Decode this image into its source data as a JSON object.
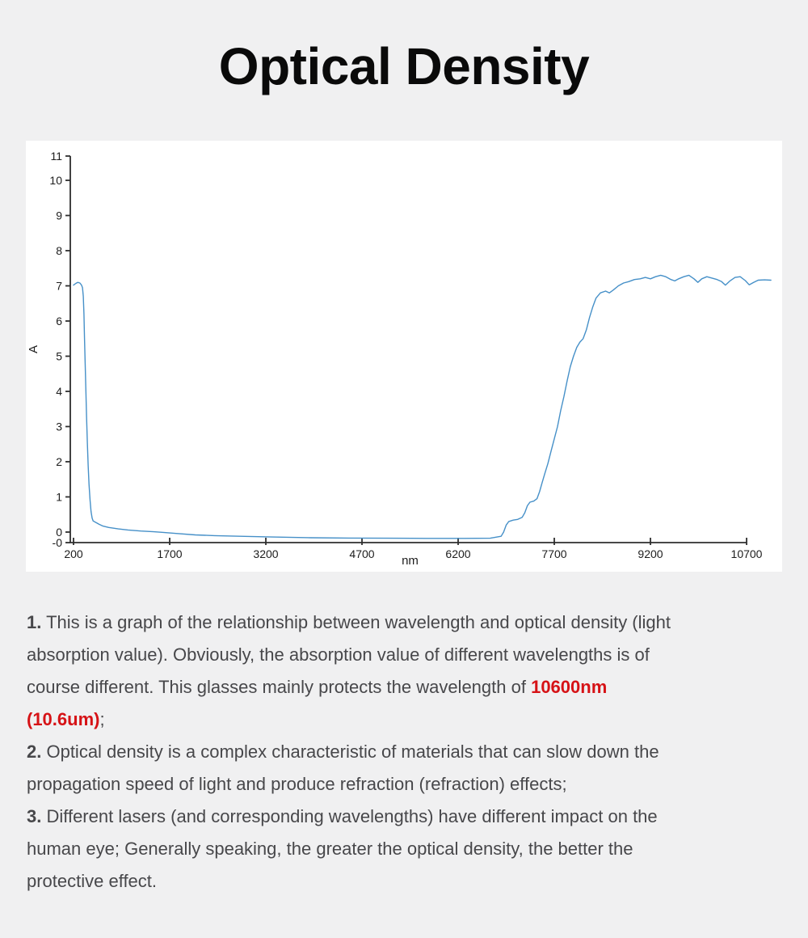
{
  "page": {
    "title": "Optical Density"
  },
  "colors": {
    "background": "#f0f0f1",
    "card": "#ffffff",
    "title": "#0a0a0a",
    "text": "#47474a",
    "accent-red": "#d61216",
    "curve": "#4690c8",
    "axis": "#2e2e2e",
    "tick-text": "#1d1d1d"
  },
  "chart_data": {
    "type": "line",
    "title": "",
    "xlabel": "nm",
    "ylabel": "A",
    "xlim": [
      200,
      11080
    ],
    "ylim": [
      -0.3,
      11
    ],
    "grid": false,
    "legend": null,
    "line_color": "#4690c8",
    "x_ticks": [
      200,
      1700,
      3200,
      4700,
      6200,
      7700,
      9200,
      10700
    ],
    "y_ticks": [
      {
        "label": "11",
        "v": 10.69
      },
      {
        "label": "10",
        "v": 10
      },
      {
        "label": "9",
        "v": 9
      },
      {
        "label": "8",
        "v": 8
      },
      {
        "label": "7",
        "v": 7
      },
      {
        "label": "6",
        "v": 6
      },
      {
        "label": "5",
        "v": 5
      },
      {
        "label": "4",
        "v": 4
      },
      {
        "label": "3",
        "v": 3
      },
      {
        "label": "2",
        "v": 2
      },
      {
        "label": "1",
        "v": 1
      },
      {
        "label": "0",
        "v": 0
      },
      {
        "label": "-0",
        "v": -0.3
      }
    ],
    "series": [
      {
        "name": "optical-density",
        "points": [
          [
            200,
            7.02
          ],
          [
            235,
            7.07
          ],
          [
            265,
            7.1
          ],
          [
            300,
            7.08
          ],
          [
            325,
            7.02
          ],
          [
            340,
            6.95
          ],
          [
            352,
            6.7
          ],
          [
            362,
            6.2
          ],
          [
            372,
            5.5
          ],
          [
            382,
            4.8
          ],
          [
            392,
            4.1
          ],
          [
            403,
            3.3
          ],
          [
            415,
            2.55
          ],
          [
            428,
            1.9
          ],
          [
            442,
            1.35
          ],
          [
            458,
            0.9
          ],
          [
            474,
            0.58
          ],
          [
            490,
            0.4
          ],
          [
            505,
            0.32
          ],
          [
            540,
            0.28
          ],
          [
            600,
            0.22
          ],
          [
            660,
            0.17
          ],
          [
            750,
            0.13
          ],
          [
            900,
            0.09
          ],
          [
            1050,
            0.06
          ],
          [
            1250,
            0.03
          ],
          [
            1450,
            0.01
          ],
          [
            1600,
            -0.01
          ],
          [
            1800,
            -0.04
          ],
          [
            2100,
            -0.08
          ],
          [
            2400,
            -0.1
          ],
          [
            2800,
            -0.12
          ],
          [
            3300,
            -0.14
          ],
          [
            3900,
            -0.16
          ],
          [
            4500,
            -0.17
          ],
          [
            5100,
            -0.175
          ],
          [
            5700,
            -0.18
          ],
          [
            6300,
            -0.18
          ],
          [
            6700,
            -0.175
          ],
          [
            6870,
            -0.12
          ],
          [
            6910,
            0.0
          ],
          [
            6950,
            0.2
          ],
          [
            6990,
            0.3
          ],
          [
            7060,
            0.34
          ],
          [
            7130,
            0.36
          ],
          [
            7200,
            0.42
          ],
          [
            7240,
            0.55
          ],
          [
            7280,
            0.75
          ],
          [
            7320,
            0.85
          ],
          [
            7380,
            0.88
          ],
          [
            7430,
            0.95
          ],
          [
            7470,
            1.15
          ],
          [
            7510,
            1.4
          ],
          [
            7550,
            1.65
          ],
          [
            7600,
            1.95
          ],
          [
            7650,
            2.3
          ],
          [
            7700,
            2.65
          ],
          [
            7750,
            3.0
          ],
          [
            7800,
            3.45
          ],
          [
            7850,
            3.85
          ],
          [
            7900,
            4.3
          ],
          [
            7950,
            4.7
          ],
          [
            8000,
            5.0
          ],
          [
            8050,
            5.25
          ],
          [
            8100,
            5.4
          ],
          [
            8150,
            5.5
          ],
          [
            8200,
            5.75
          ],
          [
            8250,
            6.1
          ],
          [
            8300,
            6.4
          ],
          [
            8350,
            6.65
          ],
          [
            8420,
            6.8
          ],
          [
            8500,
            6.85
          ],
          [
            8560,
            6.8
          ],
          [
            8620,
            6.88
          ],
          [
            8700,
            7.0
          ],
          [
            8780,
            7.08
          ],
          [
            8860,
            7.12
          ],
          [
            8950,
            7.18
          ],
          [
            9040,
            7.2
          ],
          [
            9120,
            7.24
          ],
          [
            9200,
            7.2
          ],
          [
            9280,
            7.26
          ],
          [
            9360,
            7.3
          ],
          [
            9440,
            7.26
          ],
          [
            9520,
            7.18
          ],
          [
            9580,
            7.14
          ],
          [
            9640,
            7.2
          ],
          [
            9720,
            7.26
          ],
          [
            9800,
            7.3
          ],
          [
            9880,
            7.2
          ],
          [
            9940,
            7.1
          ],
          [
            10000,
            7.2
          ],
          [
            10080,
            7.26
          ],
          [
            10160,
            7.22
          ],
          [
            10240,
            7.18
          ],
          [
            10310,
            7.12
          ],
          [
            10370,
            7.02
          ],
          [
            10440,
            7.14
          ],
          [
            10520,
            7.24
          ],
          [
            10600,
            7.26
          ],
          [
            10680,
            7.15
          ],
          [
            10740,
            7.03
          ],
          [
            10810,
            7.1
          ],
          [
            10880,
            7.16
          ],
          [
            10980,
            7.17
          ],
          [
            11080,
            7.16
          ]
        ]
      }
    ]
  },
  "notes": [
    {
      "lines": [
        [
          {
            "text": "1.",
            "style": "bold"
          },
          {
            "text": " This is a graph of the relationship between wavelength and optical density (light",
            "style": "normal"
          }
        ],
        [
          {
            "text": "absorption value). Obviously, the absorption value of different wavelengths is of",
            "style": "normal"
          }
        ],
        [
          {
            "text": "course different. This glasses mainly protects the wavelength of ",
            "style": "normal"
          },
          {
            "text": "10600nm",
            "style": "red-bold"
          }
        ],
        [
          {
            "text": "(10.6um)",
            "style": "red-bold"
          },
          {
            "text": ";",
            "style": "normal"
          }
        ]
      ]
    },
    {
      "lines": [
        [
          {
            "text": "2.",
            "style": "bold"
          },
          {
            "text": " Optical density is a complex characteristic of materials that can slow down the",
            "style": "normal"
          }
        ],
        [
          {
            "text": "propagation speed of light and produce refraction (refraction) effects;",
            "style": "normal"
          }
        ]
      ]
    },
    {
      "lines": [
        [
          {
            "text": "3.",
            "style": "bold"
          },
          {
            "text": " Different lasers (and corresponding wavelengths) have different impact on the",
            "style": "normal"
          }
        ],
        [
          {
            "text": "human eye; Generally speaking, the greater the optical density, the better the",
            "style": "normal"
          }
        ],
        [
          {
            "text": "protective effect.",
            "style": "normal"
          }
        ]
      ]
    }
  ]
}
